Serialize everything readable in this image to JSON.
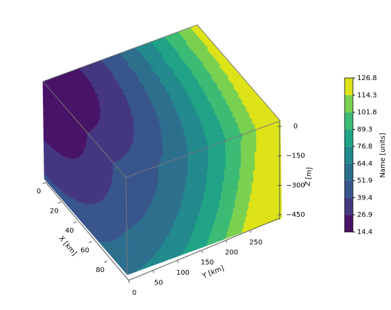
{
  "chart_data": {
    "type": "contour3d",
    "xlabel": "X [km]",
    "ylabel": "Y [km]",
    "zlabel": "Z [m]",
    "colorbar_label": "Name [units]",
    "xlim": [
      0,
      100
    ],
    "xticks": [
      0,
      20,
      40,
      60,
      80
    ],
    "ylim": [
      0,
      300
    ],
    "yticks": [
      0,
      50,
      100,
      150,
      200,
      250
    ],
    "zlim": [
      -500,
      0
    ],
    "zticks": [
      0,
      {
        "value": -150,
        "label": "−150"
      },
      {
        "value": -300,
        "label": "−300"
      },
      {
        "value": -450,
        "label": "−450"
      }
    ],
    "levels": [
      14.4,
      26.9,
      39.4,
      51.9,
      64.4,
      76.8,
      89.3,
      101.8,
      114.3,
      126.8
    ],
    "colors": [
      "#481467",
      "#453781",
      "#39568c",
      "#2d708e",
      "#238a8d",
      "#20a386",
      "#3cbb75",
      "#7ad151",
      "#dde318"
    ]
  }
}
